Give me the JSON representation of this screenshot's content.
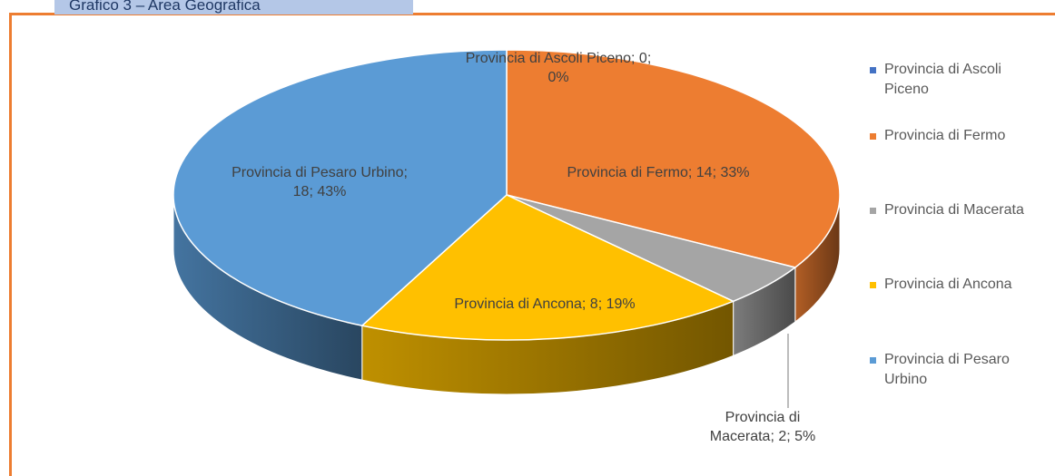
{
  "chart_data": {
    "type": "pie3d",
    "title": "Grafico 3 – Area Geografica",
    "categories": [
      "Provincia di Ascoli Piceno",
      "Provincia di Fermo",
      "Provincia di Macerata",
      "Provincia di Ancona",
      "Provincia di Pesaro Urbino"
    ],
    "values": [
      0,
      14,
      2,
      8,
      18
    ],
    "value_labels": [
      "Provincia di Ascoli Piceno; 0; 0%",
      "Provincia di Fermo; 14; 33%",
      "Provincia di Macerata; 2; 5%",
      "Provincia di Ancona; 8; 19%",
      "Provincia di Pesaro Urbino; 18; 43%"
    ],
    "colors": [
      "#4472c4",
      "#ed7d31",
      "#a5a5a5",
      "#ffc000",
      "#5b9bd5"
    ],
    "legend": "right"
  }
}
